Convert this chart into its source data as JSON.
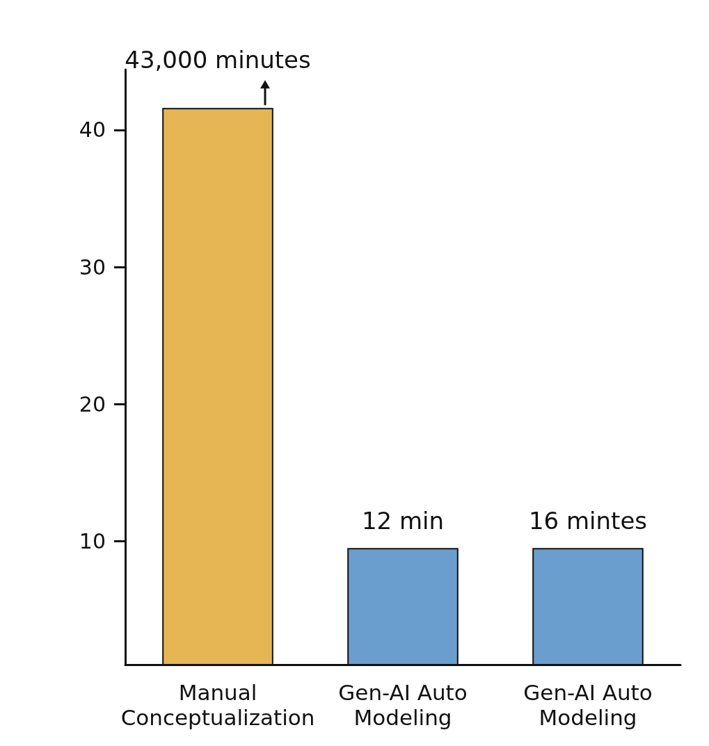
{
  "chart_data": {
    "type": "bar",
    "categories": [
      "Manual\nConceptualization",
      "Gen-AI Auto\nModeling",
      "Gen-AI Auto\nModeling"
    ],
    "values": [
      41.6,
      9.5,
      9.5
    ],
    "colors": [
      "#e6b655",
      "#6a9ecf",
      "#6a9ecf"
    ],
    "annotations": [
      "43,000 minutes",
      "12 min",
      "16 mintes"
    ],
    "ylim": [
      1,
      44.4
    ],
    "yticks": [
      10,
      20,
      30,
      40
    ],
    "grid": false
  }
}
